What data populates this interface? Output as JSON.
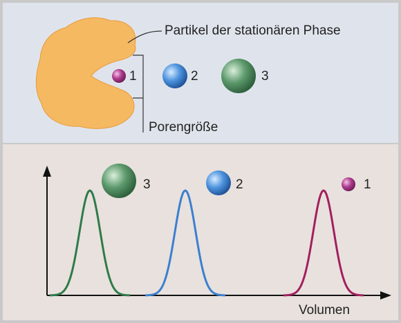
{
  "top_panel": {
    "particle_label": "Partikel der stationären Phase",
    "pore_label": "Porengröße",
    "molecules": [
      {
        "label": "1"
      },
      {
        "label": "2"
      },
      {
        "label": "3"
      }
    ]
  },
  "bottom_panel": {
    "peaks": [
      {
        "label": "3"
      },
      {
        "label": "2"
      },
      {
        "label": "1"
      }
    ],
    "x_axis_label": "Volumen"
  }
}
